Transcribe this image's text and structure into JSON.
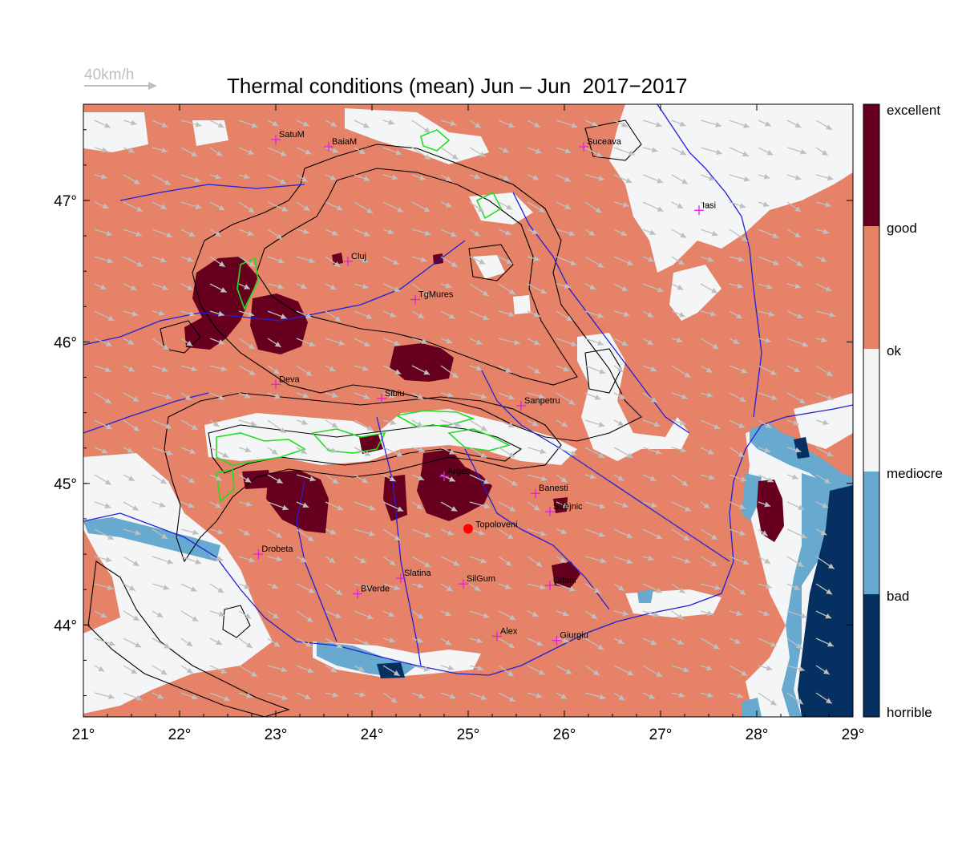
{
  "title": "Thermal conditions (mean) Jun – Jun  2017−2017",
  "wind_scale": {
    "label": "40km/h",
    "color": "#bfbfbf"
  },
  "axes": {
    "lon_ticks": [
      "21°",
      "22°",
      "23°",
      "24°",
      "25°",
      "26°",
      "27°",
      "28°",
      "29°"
    ],
    "lat_ticks": [
      "47°",
      "46°",
      "45°",
      "44°"
    ],
    "lon_range": [
      21,
      29
    ],
    "lat_range": [
      43.35,
      47.68
    ]
  },
  "colorbar": {
    "labels": [
      "excellent",
      "good",
      "ok",
      "mediocre",
      "bad",
      "horrible"
    ],
    "colors": {
      "excellent": "#67001f",
      "ok": "#e58267",
      "mediocre": "#f4f5f6",
      "bad": "#67a9cf",
      "horrible": "#053061"
    }
  },
  "colors": {
    "land_ok": "#e58267",
    "excellent": "#67001f",
    "mediocre": "#f4f5f6",
    "bad": "#67a9cf",
    "horrible": "#053061",
    "rivers": "#2020d8",
    "city_marker": "#e020e0",
    "highlight_marker": "#ff0000",
    "contours": "#000000",
    "green_contours": "#22dd22"
  },
  "cities": [
    {
      "name": "SatuM",
      "lon": 23.0,
      "lat": 47.43
    },
    {
      "name": "BaiaM",
      "lon": 23.55,
      "lat": 47.38
    },
    {
      "name": "Suceava",
      "lon": 26.2,
      "lat": 47.38
    },
    {
      "name": "Iasi",
      "lon": 27.4,
      "lat": 46.93
    },
    {
      "name": "Cluj",
      "lon": 23.75,
      "lat": 46.57
    },
    {
      "name": "TgMures",
      "lon": 24.45,
      "lat": 46.3
    },
    {
      "name": "Deva",
      "lon": 23.0,
      "lat": 45.7
    },
    {
      "name": "Sibiu",
      "lon": 24.1,
      "lat": 45.6
    },
    {
      "name": "Sanpetru",
      "lon": 25.55,
      "lat": 45.55
    },
    {
      "name": "Arges",
      "lon": 24.75,
      "lat": 45.05
    },
    {
      "name": "Banesti",
      "lon": 25.7,
      "lat": 44.93
    },
    {
      "name": "Strejnic",
      "lon": 25.85,
      "lat": 44.8
    },
    {
      "name": "Drobeta",
      "lon": 22.82,
      "lat": 44.5
    },
    {
      "name": "Slatina",
      "lon": 24.3,
      "lat": 44.33
    },
    {
      "name": "SilGum",
      "lon": 24.95,
      "lat": 44.29
    },
    {
      "name": "BVerde",
      "lon": 23.85,
      "lat": 44.22
    },
    {
      "name": "Oltani",
      "lon": 25.85,
      "lat": 44.28
    },
    {
      "name": "Alex",
      "lon": 25.3,
      "lat": 43.92
    },
    {
      "name": "Giurgiu",
      "lon": 25.92,
      "lat": 43.89
    }
  ],
  "highlight_site": {
    "name": "Topoloveni",
    "lon": 25.0,
    "lat": 44.68
  }
}
